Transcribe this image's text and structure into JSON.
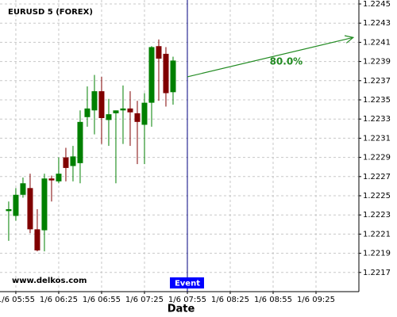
{
  "chart_data": {
    "type": "candlestick",
    "title": "EURUSD 5 (FOREX)",
    "x_label": "Date",
    "watermark": "www.delkos.com",
    "xlim": [
      346.7,
      595
    ],
    "xticks": [
      {
        "value": 355,
        "label": "1/6 05:55"
      },
      {
        "value": 385,
        "label": "1/6 06:25"
      },
      {
        "value": 415,
        "label": "1/6 06:55"
      },
      {
        "value": 445,
        "label": "1/6 07:25"
      },
      {
        "value": 475,
        "label": "1/6 07:55"
      },
      {
        "value": 505,
        "label": "1/6 08:25"
      },
      {
        "value": 535,
        "label": "1/6 08:55"
      },
      {
        "value": 565,
        "label": "1/6 09:25"
      }
    ],
    "ylim": [
      1.2215,
      1.2245
    ],
    "yticks": [
      1.2217,
      1.2219,
      1.2221,
      1.2223,
      1.2225,
      1.2227,
      1.2229,
      1.2231,
      1.2233,
      1.2235,
      1.2237,
      1.2239,
      1.2241,
      1.2243,
      1.2245
    ],
    "grid": true,
    "up_color": "#008000",
    "down_color": "#800000",
    "x": [
      350,
      355,
      360,
      365,
      370,
      375,
      380,
      385,
      390,
      395,
      400,
      405,
      410,
      415,
      420,
      425,
      430,
      435,
      440,
      445,
      450,
      455,
      460,
      465
    ],
    "open": [
      1.22234,
      1.22229,
      1.22251,
      1.22258,
      1.22215,
      1.22214,
      1.22268,
      1.22265,
      1.2229,
      1.22281,
      1.22284,
      1.22332,
      1.22339,
      1.22359,
      1.22329,
      1.22336,
      1.22339,
      1.22341,
      1.22336,
      1.22324,
      1.22347,
      1.22406,
      1.22398,
      1.22358
    ],
    "high": [
      1.22244,
      1.22258,
      1.22269,
      1.22273,
      1.22236,
      1.22273,
      1.22271,
      1.2229,
      1.223,
      1.22302,
      1.22339,
      1.22364,
      1.22376,
      1.22374,
      1.22351,
      1.22339,
      1.22365,
      1.22359,
      1.22349,
      1.22357,
      1.22406,
      1.22413,
      1.22405,
      1.22395
    ],
    "low": [
      1.22203,
      1.22224,
      1.22248,
      1.22211,
      1.22192,
      1.22192,
      1.22244,
      1.22263,
      1.22265,
      1.22265,
      1.22263,
      1.22322,
      1.22314,
      1.22304,
      1.22302,
      1.22263,
      1.22304,
      1.22302,
      1.22283,
      1.22283,
      1.22322,
      1.22349,
      1.22343,
      1.22345
    ],
    "close": [
      1.22236,
      1.22251,
      1.22263,
      1.22215,
      1.22193,
      1.22268,
      1.22266,
      1.22273,
      1.22279,
      1.22291,
      1.22327,
      1.22341,
      1.22359,
      1.22331,
      1.22335,
      1.22339,
      1.22341,
      1.22337,
      1.22327,
      1.22347,
      1.22405,
      1.22393,
      1.22357,
      1.22391
    ],
    "event": {
      "x": 475,
      "label": "Event",
      "color": "#000080"
    },
    "arrow": {
      "x": [
        475,
        591
      ],
      "y": [
        1.22374,
        1.22415
      ],
      "label": "80.0%",
      "color": "#228b22"
    }
  }
}
